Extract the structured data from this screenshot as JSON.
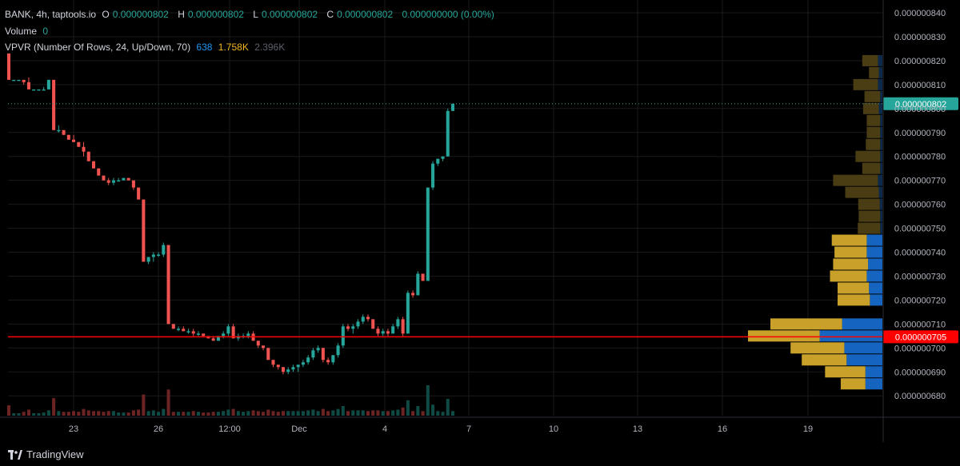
{
  "legend": {
    "symbol": "BANK, 4h, taptools.io",
    "o_label": "O",
    "o_value": "0.000000802",
    "h_label": "H",
    "h_value": "0.000000802",
    "l_label": "L",
    "l_value": "0.000000802",
    "c_label": "C",
    "c_value": "0.000000802",
    "change": "0.000000000 (0.00%)",
    "volume_label": "Volume",
    "volume_value": "0",
    "vpvr_label": "VPVR (Number Of Rows, 24, Up/Down, 70)",
    "vpvr_up": "638",
    "vpvr_down": "1.758K",
    "vpvr_total": "2.396K"
  },
  "footer": {
    "brand": "TradingView"
  },
  "colors": {
    "up": "#26a69a",
    "down": "#ef5350",
    "vp_up": "#1565c0",
    "vp_down": "#c8a02a",
    "vp_up_dim": "#0d2a4a",
    "vp_down_dim": "#4a3d14",
    "poc_line": "#ff0000",
    "last_price_bg": "#26a69a"
  },
  "chart_data": {
    "type": "candlestick",
    "price_axis": {
      "ticks": [
        "0.000000840",
        "0.000000830",
        "0.000000820",
        "0.000000810",
        "0.000000800",
        "0.000000790",
        "0.000000780",
        "0.000000770",
        "0.000000760",
        "0.000000750",
        "0.000000740",
        "0.000000730",
        "0.000000720",
        "0.000000710",
        "0.000000700",
        "0.000000690",
        "0.000000680"
      ],
      "ylim": [
        6.77e-07,
        8.45e-07
      ]
    },
    "time_axis": {
      "ticks": [
        "23",
        "26",
        "12:00",
        "Dec",
        "4",
        "7",
        "10",
        "13",
        "16",
        "19"
      ]
    },
    "last_price": {
      "value": 8.02e-07,
      "label": "0.000000802"
    },
    "poc": {
      "value": 7.05e-07,
      "label": "0.000000705"
    },
    "candles_ohlc_e9": [
      [
        823,
        823,
        812,
        812
      ],
      [
        812,
        812,
        812,
        812
      ],
      [
        812,
        812,
        812,
        812
      ],
      [
        812,
        812,
        810,
        811
      ],
      [
        811,
        813,
        808,
        808
      ],
      [
        808,
        808,
        808,
        808
      ],
      [
        808,
        808,
        808,
        808
      ],
      [
        808,
        809,
        808,
        808
      ],
      [
        808,
        812,
        808,
        812
      ],
      [
        812,
        812,
        791,
        791
      ],
      [
        791,
        793,
        790,
        791
      ],
      [
        791,
        791,
        789,
        789
      ],
      [
        789,
        789,
        787,
        787
      ],
      [
        787,
        789,
        786,
        786
      ],
      [
        786,
        786,
        784,
        784
      ],
      [
        784,
        786,
        780,
        782
      ],
      [
        782,
        782,
        778,
        778
      ],
      [
        778,
        778,
        775,
        775
      ],
      [
        775,
        775,
        772,
        772
      ],
      [
        772,
        772,
        770,
        770
      ],
      [
        770,
        771,
        768,
        769
      ],
      [
        769,
        771,
        768,
        770
      ],
      [
        770,
        771,
        770,
        770
      ],
      [
        770,
        771,
        770,
        771
      ],
      [
        771,
        771,
        770,
        770
      ],
      [
        770,
        770,
        766,
        767
      ],
      [
        767,
        767,
        762,
        762
      ],
      [
        762,
        762,
        736,
        736
      ],
      [
        736,
        738,
        735,
        738
      ],
      [
        738,
        740,
        736,
        739
      ],
      [
        739,
        740,
        738,
        739
      ],
      [
        739,
        744,
        738,
        743
      ],
      [
        743,
        743,
        710,
        710
      ],
      [
        710,
        710,
        708,
        708
      ],
      [
        708,
        709,
        707,
        708
      ],
      [
        708,
        709,
        707,
        707
      ],
      [
        707,
        708,
        706,
        707
      ],
      [
        707,
        708,
        705,
        706
      ],
      [
        706,
        707,
        705,
        706
      ],
      [
        706,
        706,
        705,
        705
      ],
      [
        705,
        705,
        704,
        704
      ],
      [
        704,
        705,
        703,
        703
      ],
      [
        703,
        705,
        703,
        705
      ],
      [
        705,
        707,
        704,
        706
      ],
      [
        706,
        710,
        705,
        709
      ],
      [
        709,
        710,
        704,
        704
      ],
      [
        704,
        706,
        703,
        705
      ],
      [
        705,
        706,
        704,
        705
      ],
      [
        705,
        707,
        704,
        706
      ],
      [
        706,
        707,
        703,
        703
      ],
      [
        703,
        703,
        700,
        701
      ],
      [
        701,
        701,
        699,
        700
      ],
      [
        700,
        700,
        695,
        695
      ],
      [
        695,
        695,
        692,
        693
      ],
      [
        693,
        693,
        691,
        692
      ],
      [
        692,
        692,
        689,
        690
      ],
      [
        690,
        692,
        689,
        691
      ],
      [
        691,
        693,
        690,
        692
      ],
      [
        692,
        693,
        690,
        693
      ],
      [
        693,
        695,
        692,
        694
      ],
      [
        694,
        697,
        693,
        696
      ],
      [
        696,
        700,
        695,
        699
      ],
      [
        699,
        701,
        698,
        700
      ],
      [
        700,
        700,
        694,
        695
      ],
      [
        695,
        696,
        693,
        694
      ],
      [
        694,
        697,
        693,
        697
      ],
      [
        697,
        702,
        696,
        701
      ],
      [
        701,
        710,
        700,
        709
      ],
      [
        709,
        710,
        707,
        708
      ],
      [
        708,
        710,
        706,
        709
      ],
      [
        709,
        712,
        708,
        711
      ],
      [
        711,
        714,
        710,
        713
      ],
      [
        713,
        714,
        711,
        712
      ],
      [
        712,
        712,
        708,
        708
      ],
      [
        708,
        709,
        705,
        706
      ],
      [
        706,
        708,
        705,
        707
      ],
      [
        707,
        708,
        705,
        706
      ],
      [
        706,
        710,
        706,
        709
      ],
      [
        709,
        713,
        708,
        712
      ],
      [
        712,
        713,
        705,
        706
      ],
      [
        706,
        724,
        706,
        723
      ],
      [
        723,
        724,
        721,
        722
      ],
      [
        722,
        732,
        722,
        731
      ],
      [
        731,
        731,
        728,
        728
      ],
      [
        728,
        767,
        728,
        767
      ],
      [
        767,
        778,
        766,
        777
      ],
      [
        777,
        779,
        776,
        779
      ],
      [
        779,
        780,
        778,
        780
      ],
      [
        780,
        800,
        780,
        799
      ],
      [
        799,
        802,
        799,
        802
      ]
    ],
    "volume_profile": [
      {
        "price": 8.2e-07,
        "up": 0.1,
        "down": 0.35
      },
      {
        "price": 8.15e-07,
        "up": 0.08,
        "down": 0.22
      },
      {
        "price": 8.1e-07,
        "up": 0.1,
        "down": 0.55
      },
      {
        "price": 8.05e-07,
        "up": 0.05,
        "down": 0.35
      },
      {
        "price": 8e-07,
        "up": 0.08,
        "down": 0.35
      },
      {
        "price": 7.95e-07,
        "up": 0.05,
        "down": 0.3
      },
      {
        "price": 7.9e-07,
        "up": 0.05,
        "down": 0.3
      },
      {
        "price": 7.85e-07,
        "up": 0.05,
        "down": 0.32
      },
      {
        "price": 7.8e-07,
        "up": 0.05,
        "down": 0.55
      },
      {
        "price": 7.75e-07,
        "up": 0.05,
        "down": 0.4
      },
      {
        "price": 7.7e-07,
        "up": 0.1,
        "down": 1.0
      },
      {
        "price": 7.65e-07,
        "up": 0.08,
        "down": 0.75
      },
      {
        "price": 7.6e-07,
        "up": 0.06,
        "down": 0.48
      },
      {
        "price": 7.55e-07,
        "up": 0.05,
        "down": 0.48
      },
      {
        "price": 7.5e-07,
        "up": 0.05,
        "down": 0.5
      },
      {
        "price": 7.45e-07,
        "up": 0.35,
        "down": 0.78
      },
      {
        "price": 7.4e-07,
        "up": 0.35,
        "down": 0.72
      },
      {
        "price": 7.35e-07,
        "up": 0.32,
        "down": 0.78
      },
      {
        "price": 7.3e-07,
        "up": 0.35,
        "down": 0.82
      },
      {
        "price": 7.25e-07,
        "up": 0.3,
        "down": 0.7
      },
      {
        "price": 7.2e-07,
        "up": 0.28,
        "down": 0.72
      },
      {
        "price": 7.1e-07,
        "up": 0.9,
        "down": 1.6
      },
      {
        "price": 7.05e-07,
        "up": 1.4,
        "down": 1.6
      },
      {
        "price": 7e-07,
        "up": 0.85,
        "down": 1.2
      },
      {
        "price": 6.95e-07,
        "up": 0.8,
        "down": 1.0
      },
      {
        "price": 6.9e-07,
        "up": 0.38,
        "down": 0.9
      },
      {
        "price": 6.85e-07,
        "up": 0.38,
        "down": 0.55
      }
    ]
  }
}
